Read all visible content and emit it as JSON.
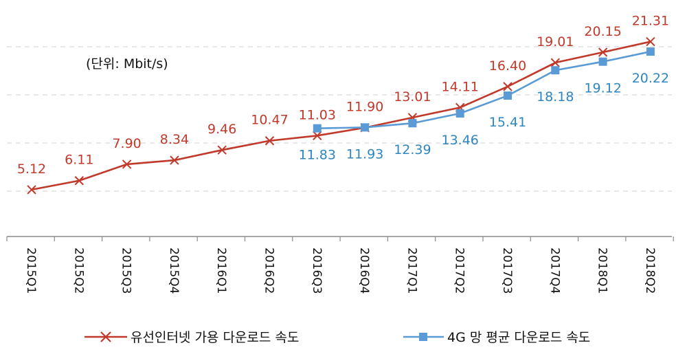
{
  "chart_data": {
    "type": "line",
    "unit_note": "(단위: Mbit/s)",
    "categories": [
      "2015Q1",
      "2015Q2",
      "2015Q3",
      "2015Q4",
      "2016Q1",
      "2016Q2",
      "2016Q3",
      "2016Q4",
      "2017Q1",
      "2017Q2",
      "2017Q3",
      "2017Q4",
      "2018Q1",
      "2018Q2"
    ],
    "series": [
      {
        "name": "유선인터넷 가용 다운로드 속도",
        "color": "#c0392b",
        "marker": "x",
        "values": [
          5.12,
          6.11,
          7.9,
          8.34,
          9.46,
          10.47,
          11.03,
          11.9,
          13.01,
          14.11,
          16.4,
          19.01,
          20.15,
          21.31
        ],
        "labels": [
          "5.12",
          "6.11",
          "7.90",
          "8.34",
          "9.46",
          "10.47",
          "11.03",
          "11.90",
          "13.01",
          "14.11",
          "16.40",
          "19.01",
          "20.15",
          "21.31"
        ]
      },
      {
        "name": "4G 망 평균 다운로드 속도",
        "color": "#5b9bd5",
        "marker": "square",
        "values": [
          null,
          null,
          null,
          null,
          null,
          null,
          11.83,
          11.93,
          12.39,
          13.46,
          15.41,
          18.18,
          19.12,
          20.22
        ],
        "labels": [
          null,
          null,
          null,
          null,
          null,
          null,
          "11.83",
          "11.93",
          "12.39",
          "13.46",
          "15.41",
          "18.18",
          "19.12",
          "20.22"
        ]
      }
    ],
    "grid": "horizontal-dashed",
    "legend_position": "bottom"
  }
}
